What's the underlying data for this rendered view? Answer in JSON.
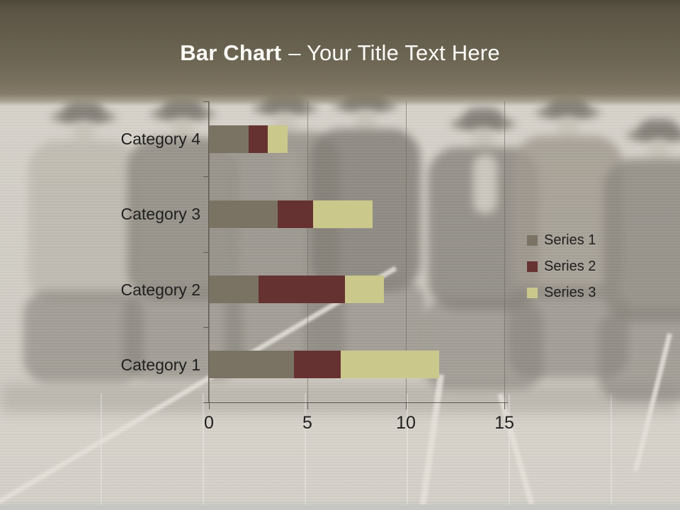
{
  "title": {
    "bold": "Bar Chart",
    "rest": "– Your Title Text Here"
  },
  "theme": {
    "band_top_color": "#4e4839",
    "band_mid_color": "#6c6553",
    "photo_tone": "#d3cfc6",
    "title_text_color": "#fcfbf7",
    "axis_text_color": "#202020"
  },
  "chart_data": {
    "type": "bar",
    "orientation": "horizontal",
    "stacked": true,
    "title": "",
    "xlabel": "",
    "ylabel": "",
    "categories": [
      "Category 1",
      "Category 2",
      "Category 3",
      "Category 4"
    ],
    "series": [
      {
        "name": "Series 1",
        "color": "#7a7363",
        "values": [
          4.3,
          2.5,
          3.5,
          2
        ]
      },
      {
        "name": "Series 2",
        "color": "#663231",
        "values": [
          2.4,
          4.4,
          1.8,
          1
        ]
      },
      {
        "name": "Series 3",
        "color": "#cbc88c",
        "values": [
          5,
          2,
          3,
          1
        ]
      }
    ],
    "xlim": [
      0,
      15
    ],
    "x_ticks": [
      0,
      5,
      10,
      15
    ],
    "grid": true,
    "legend_position": "right"
  }
}
